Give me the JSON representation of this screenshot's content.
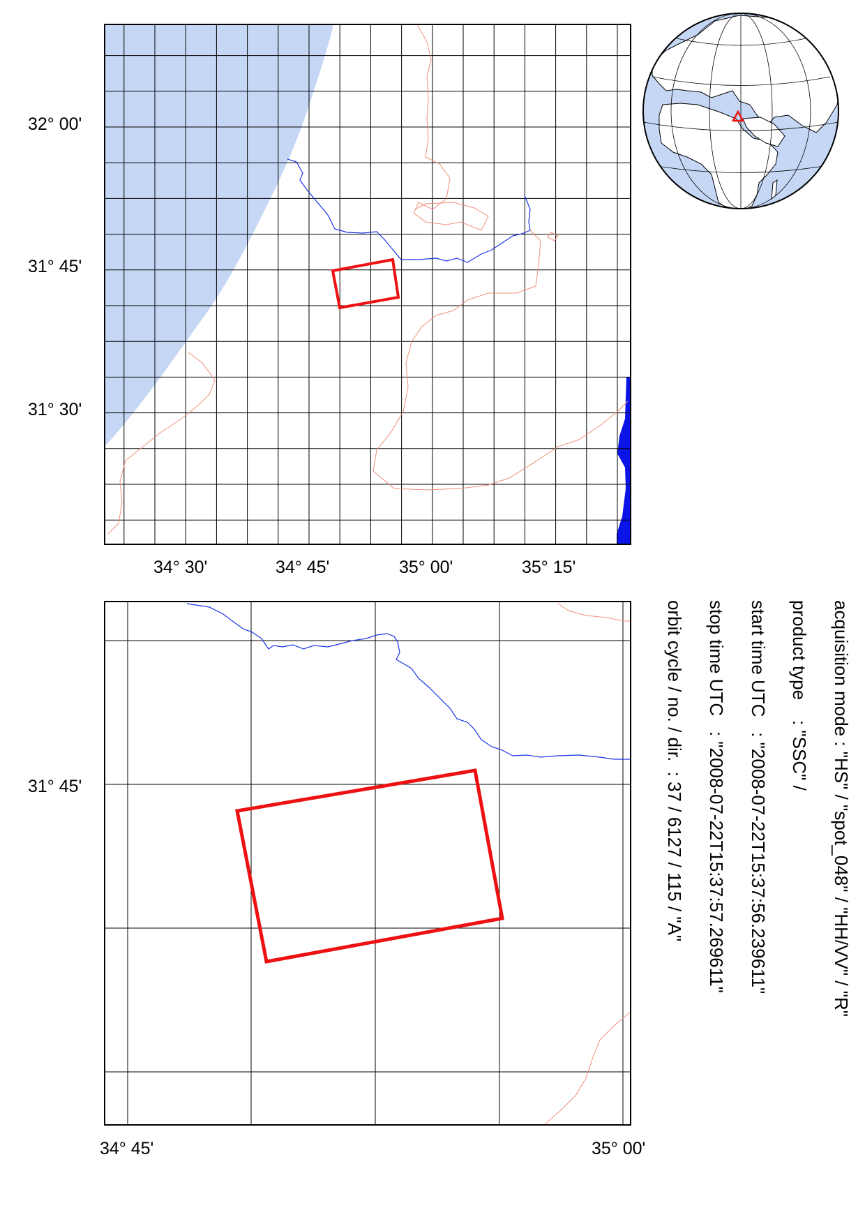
{
  "overview_map": {
    "lat_labels": [
      "32° 00'",
      "31° 45'",
      "31° 30'"
    ],
    "lon_labels": [
      "34° 30'",
      "34° 45'",
      "35° 00'",
      "35° 15'"
    ]
  },
  "detail_map": {
    "lat_labels": [
      "31° 45'"
    ],
    "lon_labels": [
      "34° 45'",
      "35° 00'"
    ]
  },
  "metadata": {
    "acquisition_mode": "acquisition mode : \"HS\" / \"spot_048\" / \"HH/VV\" / \"R\"",
    "product_type": "product type    : \"SSC\" /",
    "start_time": "start time UTC   : \"2008-07-22T15:37:56.239611\"",
    "stop_time": "stop time UTC   : \"2008-07-22T15:37:57.269611\"",
    "orbit": "orbit cycle / no. / dir.  : 37 / 6127 / 115 / \"A\""
  },
  "colors": {
    "sea": "#c5d7f5",
    "river": "#1a33e6",
    "road": "#f0907a",
    "footprint": "#ee1111",
    "dead_sea": "#0a14e6",
    "grid": "#000000"
  }
}
